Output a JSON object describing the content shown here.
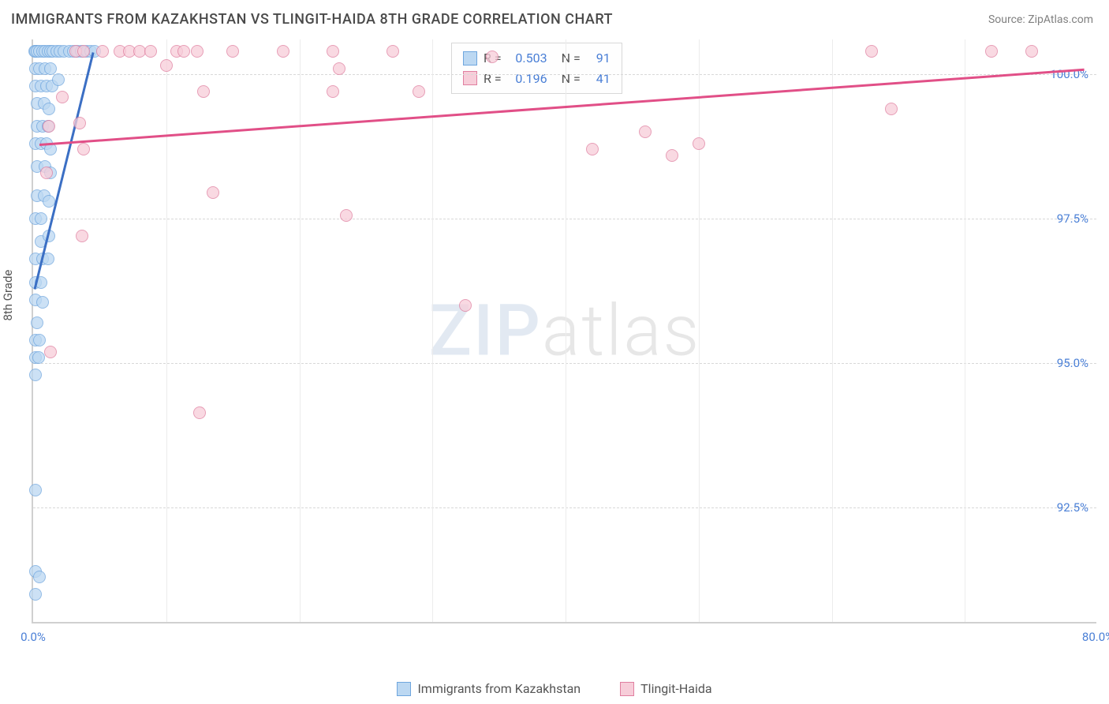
{
  "title": "IMMIGRANTS FROM KAZAKHSTAN VS TLINGIT-HAIDA 8TH GRADE CORRELATION CHART",
  "source_label": "Source: ZipAtlas.com",
  "y_axis_label": "8th Grade",
  "watermark_bold": "ZIP",
  "watermark_thin": "atlas",
  "chart": {
    "type": "scatter",
    "xlim": [
      0,
      80
    ],
    "ylim": [
      90.5,
      100.6
    ],
    "x_ticks": [
      {
        "v": 0,
        "label": "0.0%"
      },
      {
        "v": 80,
        "label": "80.0%"
      }
    ],
    "x_minor_ticks": [
      10,
      20,
      30,
      40,
      50,
      60,
      70
    ],
    "y_ticks": [
      {
        "v": 92.5,
        "label": "92.5%"
      },
      {
        "v": 95.0,
        "label": "95.0%"
      },
      {
        "v": 97.5,
        "label": "97.5%"
      },
      {
        "v": 100.0,
        "label": "100.0%"
      }
    ],
    "background_color": "#ffffff",
    "grid_color": "#d8d8d8",
    "series": [
      {
        "name": "Immigrants from Kazakhstan",
        "fill": "#bcd8f2",
        "stroke": "#6fa6de",
        "marker_r": 8,
        "R": "0.503",
        "N": "91",
        "trend": {
          "x1": 0.1,
          "y1": 96.3,
          "x2": 4.5,
          "y2": 100.4,
          "color": "#3b6fc4",
          "width": 3
        },
        "points": [
          [
            0.1,
            100.4
          ],
          [
            0.2,
            100.4
          ],
          [
            0.3,
            100.4
          ],
          [
            0.5,
            100.4
          ],
          [
            0.7,
            100.4
          ],
          [
            0.9,
            100.4
          ],
          [
            1.1,
            100.4
          ],
          [
            1.3,
            100.4
          ],
          [
            1.5,
            100.4
          ],
          [
            1.8,
            100.4
          ],
          [
            2.0,
            100.4
          ],
          [
            2.3,
            100.4
          ],
          [
            2.7,
            100.4
          ],
          [
            3.0,
            100.4
          ],
          [
            3.3,
            100.4
          ],
          [
            3.6,
            100.4
          ],
          [
            4.0,
            100.4
          ],
          [
            4.3,
            100.4
          ],
          [
            4.6,
            100.4
          ],
          [
            0.2,
            100.1
          ],
          [
            0.5,
            100.1
          ],
          [
            0.9,
            100.1
          ],
          [
            1.3,
            100.1
          ],
          [
            0.2,
            99.8
          ],
          [
            0.6,
            99.8
          ],
          [
            1.0,
            99.8
          ],
          [
            1.4,
            99.8
          ],
          [
            1.9,
            99.9
          ],
          [
            0.3,
            99.5
          ],
          [
            0.8,
            99.5
          ],
          [
            1.2,
            99.4
          ],
          [
            0.3,
            99.1
          ],
          [
            0.7,
            99.1
          ],
          [
            1.1,
            99.1
          ],
          [
            0.2,
            98.8
          ],
          [
            0.6,
            98.8
          ],
          [
            1.0,
            98.8
          ],
          [
            1.3,
            98.7
          ],
          [
            0.3,
            98.4
          ],
          [
            0.9,
            98.4
          ],
          [
            1.3,
            98.3
          ],
          [
            0.3,
            97.9
          ],
          [
            0.8,
            97.9
          ],
          [
            1.2,
            97.8
          ],
          [
            0.2,
            97.5
          ],
          [
            0.6,
            97.5
          ],
          [
            0.6,
            97.1
          ],
          [
            1.2,
            97.2
          ],
          [
            0.2,
            96.8
          ],
          [
            0.7,
            96.8
          ],
          [
            1.1,
            96.8
          ],
          [
            0.2,
            96.4
          ],
          [
            0.6,
            96.4
          ],
          [
            0.2,
            96.1
          ],
          [
            0.7,
            96.05
          ],
          [
            0.3,
            95.7
          ],
          [
            0.2,
            95.4
          ],
          [
            0.5,
            95.4
          ],
          [
            0.2,
            95.1
          ],
          [
            0.4,
            95.1
          ],
          [
            0.2,
            94.8
          ],
          [
            0.2,
            92.8
          ],
          [
            0.2,
            91.4
          ],
          [
            0.5,
            91.3
          ],
          [
            0.2,
            91.0
          ]
        ]
      },
      {
        "name": "Tlingit-Haida",
        "fill": "#f7cdd9",
        "stroke": "#e07fa0",
        "marker_r": 8,
        "R": "0.196",
        "N": "41",
        "trend": {
          "x1": 0.5,
          "y1": 98.8,
          "x2": 79,
          "y2": 100.1,
          "color": "#e14f87",
          "width": 3
        },
        "points": [
          [
            3.2,
            100.4
          ],
          [
            3.8,
            100.4
          ],
          [
            5.2,
            100.4
          ],
          [
            6.5,
            100.4
          ],
          [
            7.2,
            100.4
          ],
          [
            8.0,
            100.4
          ],
          [
            8.8,
            100.4
          ],
          [
            10.8,
            100.4
          ],
          [
            11.3,
            100.4
          ],
          [
            12.3,
            100.4
          ],
          [
            15.0,
            100.4
          ],
          [
            18.8,
            100.4
          ],
          [
            22.5,
            100.4
          ],
          [
            27.0,
            100.4
          ],
          [
            34.5,
            100.3
          ],
          [
            63.0,
            100.4
          ],
          [
            72.0,
            100.4
          ],
          [
            75.0,
            100.4
          ],
          [
            10.0,
            100.15
          ],
          [
            23.0,
            100.1
          ],
          [
            2.2,
            99.6
          ],
          [
            12.8,
            99.7
          ],
          [
            22.5,
            99.7
          ],
          [
            29.0,
            99.7
          ],
          [
            64.5,
            99.4
          ],
          [
            1.2,
            99.1
          ],
          [
            3.5,
            99.15
          ],
          [
            46.0,
            99.0
          ],
          [
            3.8,
            98.7
          ],
          [
            42.0,
            98.7
          ],
          [
            48.0,
            98.6
          ],
          [
            50.0,
            98.8
          ],
          [
            1.0,
            98.3
          ],
          [
            13.5,
            97.95
          ],
          [
            23.5,
            97.55
          ],
          [
            3.7,
            97.2
          ],
          [
            32.5,
            96.0
          ],
          [
            1.3,
            95.2
          ],
          [
            12.5,
            94.15
          ]
        ]
      }
    ]
  },
  "legend_inline": {
    "R_label": "R =",
    "N_label": "N ="
  },
  "bottom_legend": [
    {
      "label": "Immigrants from Kazakhstan",
      "fill": "#bcd8f2",
      "stroke": "#6fa6de"
    },
    {
      "label": "Tlingit-Haida",
      "fill": "#f7cdd9",
      "stroke": "#e07fa0"
    }
  ]
}
